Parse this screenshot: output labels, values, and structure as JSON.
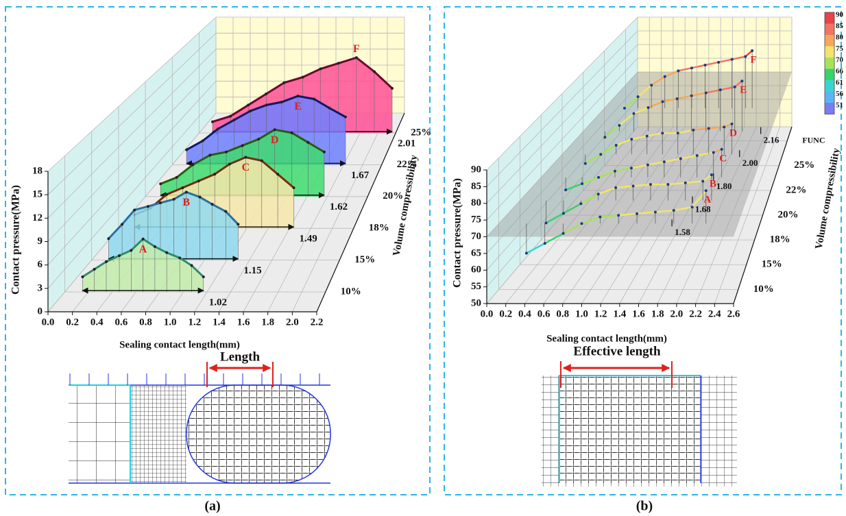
{
  "chart_data": [
    {
      "type": "waterfall3d",
      "panel_label": "(a)",
      "diagram_label": "Length",
      "xlabel": "Sealing contact length(mm)",
      "ylabel": "Contact pressure(MPa)",
      "zlabel": "Volume compressibility",
      "xlim": [
        0,
        2.2
      ],
      "xticks": [
        {
          "value": 0,
          "label": "0.0"
        },
        0.2,
        0.4,
        0.6,
        0.8,
        {
          "value": 1,
          "label": "1.0"
        },
        1.2,
        1.4,
        1.6,
        1.8,
        {
          "value": 2,
          "label": "2.0"
        },
        2.2
      ],
      "ylim": [
        0,
        18
      ],
      "yticks": [
        0,
        3,
        6,
        9,
        12,
        15,
        18
      ],
      "zcategories": [
        "10%",
        "15%",
        "18%",
        "20%",
        "22%",
        "25%"
      ],
      "series": [
        {
          "name": "A",
          "fill": "#c3ecab",
          "color": "#2e8b6e",
          "length": 1.02,
          "x": [
            0.15,
            0.25,
            0.35,
            0.46,
            0.56,
            0.66,
            0.76,
            0.86,
            0.97,
            1.07,
            1.17
          ],
          "values": [
            2,
            3,
            4,
            4.8,
            5.5,
            7,
            6,
            5.2,
            4.5,
            3.5,
            2
          ]
        },
        {
          "name": "B",
          "fill": "#8fd9ee",
          "color": "#2a6fa0",
          "length": 1.15,
          "x": [
            0.15,
            0.27,
            0.38,
            0.5,
            0.61,
            0.73,
            0.84,
            0.96,
            1.07,
            1.19,
            1.3
          ],
          "values": [
            3,
            5,
            7,
            7.5,
            8,
            8.5,
            9.5,
            8.8,
            7.8,
            6.8,
            5
          ]
        },
        {
          "name": "C",
          "fill": "#f7e7aa",
          "color": "#7a2a10",
          "length": 1.49,
          "x": [
            0.15,
            0.3,
            0.45,
            0.6,
            0.75,
            0.9,
            1.04,
            1.19,
            1.34,
            1.49,
            1.64
          ],
          "values": [
            2,
            3,
            5,
            6,
            7,
            8,
            9.5,
            10.5,
            10,
            8,
            6
          ]
        },
        {
          "name": "D",
          "fill": "#3fdc70",
          "color": "#2b5a10",
          "length": 1.62,
          "x": [
            0.15,
            0.31,
            0.47,
            0.64,
            0.8,
            0.96,
            1.12,
            1.28,
            1.45,
            1.61,
            1.77
          ],
          "values": [
            2,
            3,
            5,
            6.5,
            7,
            8,
            9,
            10.5,
            10,
            8.5,
            7
          ]
        },
        {
          "name": "E",
          "fill": "#7080ff",
          "color": "#0a1a6b",
          "length": 1.67,
          "x": [
            0.15,
            0.32,
            0.48,
            0.65,
            0.82,
            0.99,
            1.15,
            1.32,
            1.49,
            1.65,
            1.82
          ],
          "values": [
            2.5,
            4,
            6,
            7.5,
            9,
            10,
            10.5,
            11.5,
            11,
            9.5,
            8
          ]
        },
        {
          "name": "F",
          "fill": "#ff5096",
          "color": "#6b0a2a",
          "length": 2.01,
          "x": [
            0.15,
            0.35,
            0.55,
            0.75,
            0.95,
            1.16,
            1.36,
            1.56,
            1.76,
            1.96,
            2.16
          ],
          "values": [
            2,
            3,
            5,
            7,
            9,
            10,
            11.5,
            12.5,
            13.5,
            11,
            8
          ]
        }
      ]
    },
    {
      "type": "line3d",
      "panel_label": "(b)",
      "diagram_label": "Effective length",
      "xlabel": "Sealing contact length(mm)",
      "ylabel": "Contact pressure(MPa)",
      "zlabel": "Volume compressibility",
      "xlim": [
        0,
        2.6
      ],
      "xticks": [
        {
          "value": 0,
          "label": "0.0"
        },
        0.2,
        0.4,
        0.6,
        0.8,
        {
          "value": 1,
          "label": "1.0"
        },
        1.2,
        1.4,
        1.6,
        1.8,
        {
          "value": 2,
          "label": "2.0"
        },
        2.2,
        2.4,
        2.6
      ],
      "ylim": [
        50,
        90
      ],
      "yticks": [
        50,
        55,
        60,
        65,
        70,
        75,
        80,
        85,
        90
      ],
      "zcategories": [
        "10%",
        "15%",
        "18%",
        "20%",
        "22%",
        "25%",
        "FUNC"
      ],
      "plane": 70,
      "colorbar": {
        "ticks": [
          51,
          56,
          61,
          66,
          70,
          75,
          80,
          85,
          90
        ],
        "colors": [
          "#7a7cf2",
          "#5cb4f4",
          "#3ad4d0",
          "#37d36b",
          "#a6e35a",
          "#f3e46a",
          "#f6a75a",
          "#f27562",
          "#e8424a"
        ]
      },
      "series": [
        {
          "name": "A",
          "length": 1.58,
          "x": [
            0.3,
            0.5,
            0.7,
            0.9,
            1.1,
            1.3,
            1.5,
            1.7,
            1.9,
            2.1,
            2.25
          ],
          "values": [
            61,
            64,
            67,
            70,
            72,
            72.5,
            73,
            73.5,
            74,
            75,
            80
          ]
        },
        {
          "name": "B",
          "length": 1.68,
          "x": [
            0.3,
            0.5,
            0.7,
            0.9,
            1.1,
            1.3,
            1.5,
            1.7,
            1.9,
            2.1,
            2.2
          ],
          "values": [
            63,
            66,
            69,
            72,
            74,
            74.5,
            75,
            75,
            75.5,
            76,
            78
          ]
        },
        {
          "name": "C",
          "length": 1.8,
          "length_label": "1.80",
          "x": [
            0.3,
            0.5,
            0.7,
            0.9,
            1.1,
            1.3,
            1.5,
            1.7,
            1.9,
            2.1,
            2.2
          ],
          "values": [
            66,
            68,
            70,
            72,
            73,
            74,
            75,
            76,
            77,
            78,
            79
          ]
        },
        {
          "name": "D",
          "length": 2,
          "length_label": "2.00",
          "x": [
            0.3,
            0.5,
            0.7,
            0.9,
            1.1,
            1.3,
            1.5,
            1.7,
            1.9,
            2.1,
            2.2
          ],
          "values": [
            67,
            70,
            73,
            75,
            76,
            77,
            77,
            78,
            78.5,
            79,
            80
          ]
        },
        {
          "name": "E",
          "length": 2.16,
          "x": [
            0.3,
            0.5,
            0.7,
            0.9,
            1.1,
            1.3,
            1.5,
            1.7,
            1.9,
            2.1,
            2.2
          ],
          "values": [
            68,
            72,
            76,
            78,
            80,
            81,
            82,
            83,
            84,
            85,
            87
          ]
        },
        {
          "name": "F",
          "x": [
            0.3,
            0.5,
            0.7,
            0.9,
            1.1,
            1.3,
            1.5,
            1.7,
            1.9,
            2.1,
            2.2
          ],
          "values": [
            70,
            74,
            78,
            81,
            83,
            84,
            85,
            86,
            87,
            88,
            90
          ]
        }
      ]
    }
  ]
}
